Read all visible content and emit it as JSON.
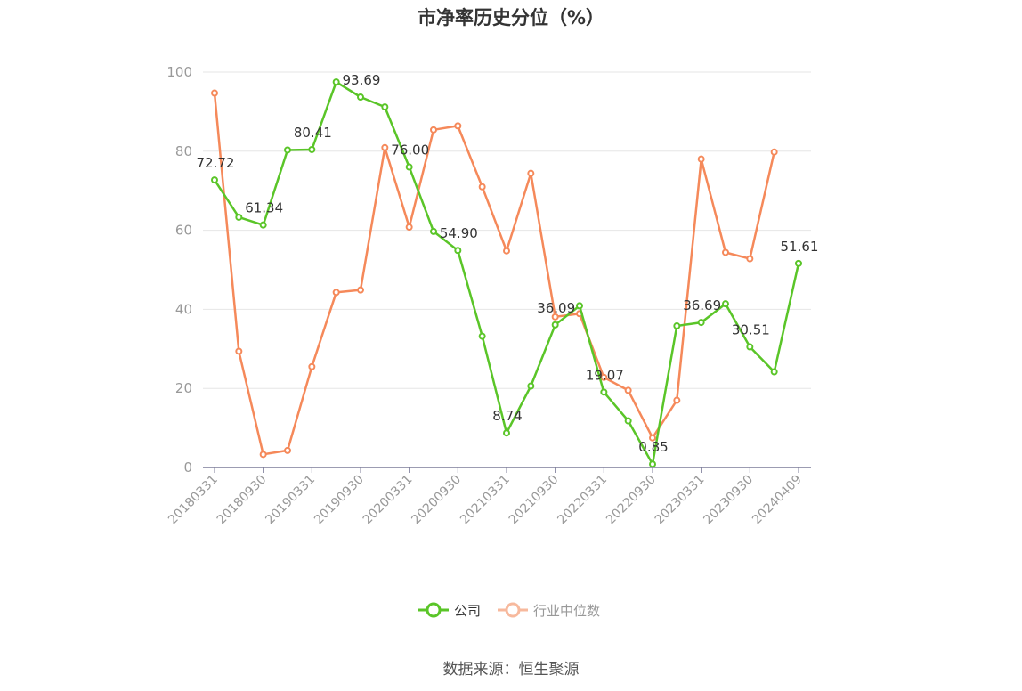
{
  "title": "市净率历史分位（%）",
  "source": "数据来源：恒生聚源",
  "legend": {
    "company": "公司",
    "industry": "行业中位数"
  },
  "colors": {
    "company": "#5ac528",
    "industry": "#f5895a",
    "industry_legend": "#f7b99d",
    "axis": "#7c7c99",
    "grid": "#e6e6e6"
  },
  "chart_data": {
    "type": "line",
    "title": "市净率历史分位（%）",
    "ylim": [
      0,
      100
    ],
    "yticks": [
      0,
      20,
      40,
      60,
      80,
      100
    ],
    "grid": true,
    "legend_position": "bottom",
    "x": [
      "20180331",
      "20180630",
      "20180930",
      "20181231",
      "20190331",
      "20190630",
      "20190930",
      "20191231",
      "20200331",
      "20200630",
      "20200930",
      "20201231",
      "20210331",
      "20210630",
      "20210930",
      "20211231",
      "20220331",
      "20220630",
      "20220930",
      "20221231",
      "20230331",
      "20230630",
      "20230930",
      "20231231",
      "20240409"
    ],
    "xtick_labels": [
      "20180331",
      "20180930",
      "20190331",
      "20190930",
      "20200331",
      "20200930",
      "20210331",
      "20210930",
      "20220331",
      "20220930",
      "20230331",
      "20230930",
      "20240409"
    ],
    "series": [
      {
        "name": "公司",
        "values": [
          72.72,
          63.3,
          61.34,
          80.3,
          80.41,
          97.5,
          93.69,
          91.2,
          76.0,
          59.7,
          54.9,
          33.2,
          8.74,
          20.6,
          36.09,
          40.9,
          19.07,
          11.8,
          0.85,
          35.8,
          36.69,
          41.4,
          30.51,
          24.2,
          51.61
        ],
        "labels": [
          "72.72",
          "",
          "61.34",
          "",
          "80.41",
          "",
          "93.69",
          "",
          "76.00",
          "",
          "54.90",
          "",
          "8.74",
          "",
          "36.09",
          "",
          "19.07",
          "",
          "0.85",
          "",
          "36.69",
          "",
          "30.51",
          "",
          "51.61"
        ]
      },
      {
        "name": "行业中位数",
        "values": [
          94.7,
          29.4,
          3.3,
          4.3,
          25.5,
          44.3,
          44.9,
          80.9,
          60.8,
          85.4,
          86.4,
          71.0,
          54.8,
          74.4,
          38.1,
          38.9,
          22.8,
          19.5,
          7.5,
          17.0,
          78.0,
          54.4,
          52.8,
          79.8,
          null
        ]
      }
    ]
  }
}
